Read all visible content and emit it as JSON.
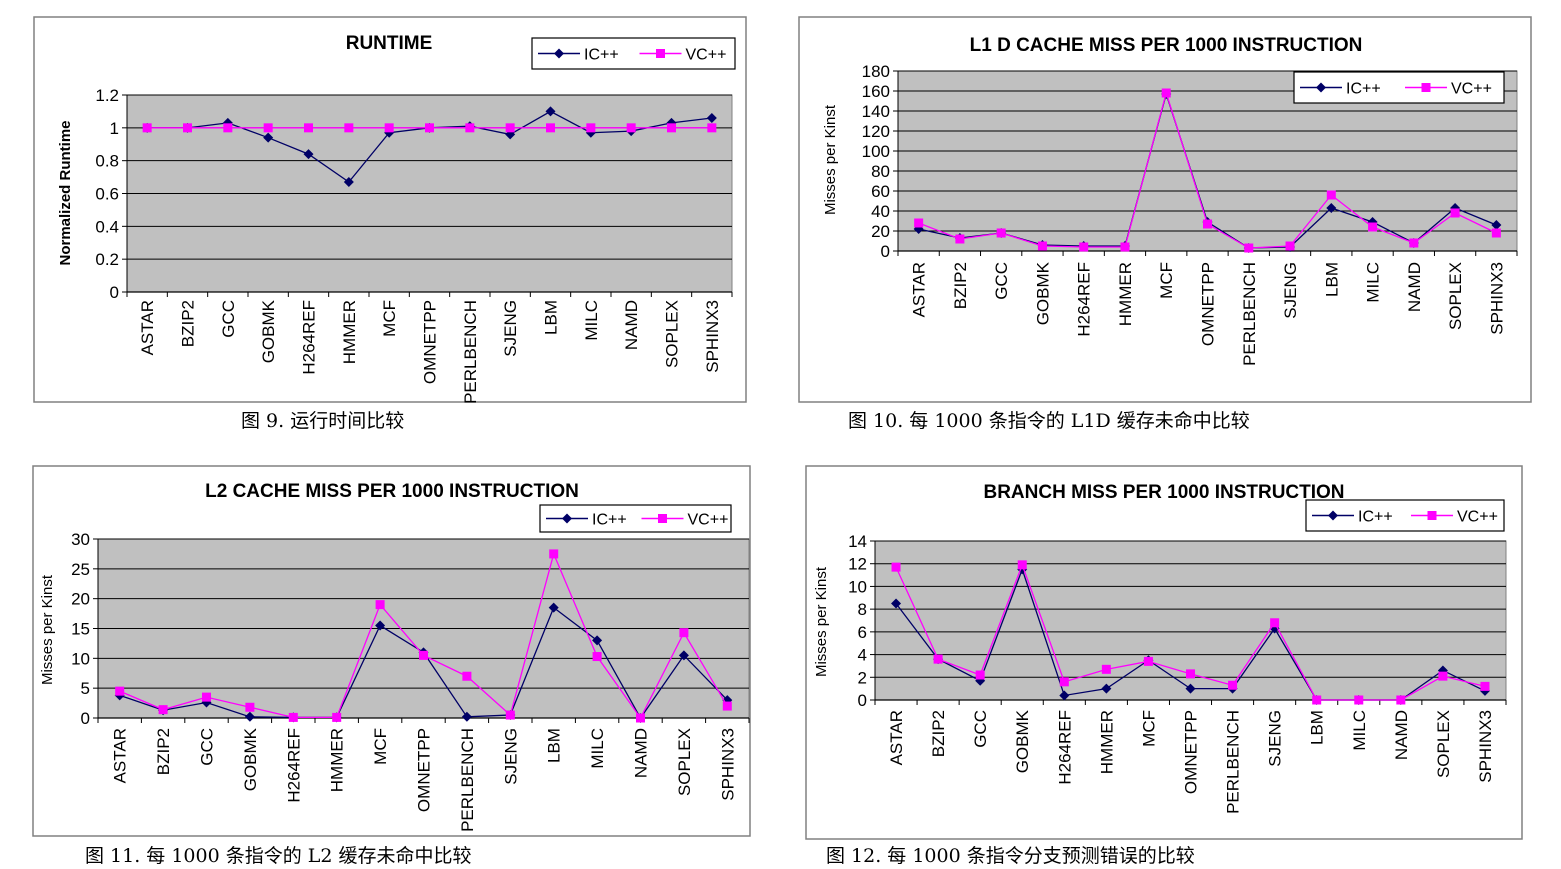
{
  "chart_data": [
    {
      "type": "line",
      "title": "RUNTIME",
      "ylabel": "Normalized Runtime",
      "ylim": [
        0,
        1.2
      ],
      "yticks": [
        "0",
        "0.2",
        "0.4",
        "0.6",
        "0.8",
        "1",
        "1.2"
      ],
      "legend": "top-right",
      "grid": true,
      "categories": [
        "ASTAR",
        "BZIP2",
        "GCC",
        "GOBMK",
        "H264REF",
        "HMMER",
        "MCF",
        "OMNETPP",
        "PERLBENCH",
        "SJENG",
        "LBM",
        "MILC",
        "NAMD",
        "SOPLEX",
        "SPHINX3"
      ],
      "series": [
        {
          "name": "IC++",
          "color": "#000066",
          "marker": "diamond",
          "values": [
            1.0,
            1.0,
            1.03,
            0.94,
            0.84,
            0.67,
            0.97,
            1.0,
            1.01,
            0.96,
            1.1,
            0.97,
            0.98,
            1.03,
            1.06
          ]
        },
        {
          "name": "VC++",
          "color": "#ff00ff",
          "marker": "square",
          "values": [
            1,
            1,
            1,
            1,
            1,
            1,
            1,
            1,
            1,
            1,
            1,
            1,
            1,
            1,
            1
          ]
        }
      ],
      "caption": "图 9. 运行时间比较"
    },
    {
      "type": "line",
      "title": "L1 D CACHE MISS PER 1000 INSTRUCTION",
      "ylabel": "Misses per Kinst",
      "ylim": [
        0,
        180
      ],
      "yticks": [
        "0",
        "20",
        "40",
        "60",
        "80",
        "100",
        "120",
        "140",
        "160",
        "180"
      ],
      "legend": "top-right",
      "grid": true,
      "categories": [
        "ASTAR",
        "BZIP2",
        "GCC",
        "GOBMK",
        "H264REF",
        "HMMER",
        "MCF",
        "OMNETPP",
        "PERLBENCH",
        "SJENG",
        "LBM",
        "MILC",
        "NAMD",
        "SOPLEX",
        "SPHINX3"
      ],
      "series": [
        {
          "name": "IC++",
          "color": "#000066",
          "marker": "diamond",
          "values": [
            22,
            13,
            18,
            6,
            5,
            5,
            157,
            29,
            3,
            4,
            43,
            29,
            8,
            43,
            26
          ]
        },
        {
          "name": "VC++",
          "color": "#ff00ff",
          "marker": "square",
          "values": [
            28,
            12,
            18,
            5,
            4,
            4,
            158,
            27,
            3,
            5,
            56,
            24,
            8,
            38,
            18
          ]
        }
      ],
      "caption": "图 10. 每 1000 条指令的 L1D 缓存未命中比较"
    },
    {
      "type": "line",
      "title": "L2 CACHE MISS PER 1000 INSTRUCTION",
      "ylabel": "Misses per Kinst",
      "ylim": [
        0,
        30
      ],
      "yticks": [
        "0",
        "5",
        "10",
        "15",
        "20",
        "25",
        "30"
      ],
      "legend": "top-right",
      "grid": true,
      "categories": [
        "ASTAR",
        "BZIP2",
        "GCC",
        "GOBMK",
        "H264REF",
        "HMMER",
        "MCF",
        "OMNETPP",
        "PERLBENCH",
        "SJENG",
        "LBM",
        "MILC",
        "NAMD",
        "SOPLEX",
        "SPHINX3"
      ],
      "series": [
        {
          "name": "IC++",
          "color": "#000066",
          "marker": "diamond",
          "values": [
            3.8,
            1.3,
            2.6,
            0.2,
            0.1,
            0.1,
            15.5,
            11,
            0.2,
            0.5,
            18.5,
            13,
            0,
            10.5,
            3
          ]
        },
        {
          "name": "VC++",
          "color": "#ff00ff",
          "marker": "square",
          "values": [
            4.5,
            1.4,
            3.5,
            1.8,
            0.1,
            0.1,
            19,
            10.5,
            7,
            0.5,
            27.5,
            10.3,
            0,
            14.3,
            2
          ]
        }
      ],
      "caption": "图 11. 每 1000 条指令的 L2 缓存未命中比较"
    },
    {
      "type": "line",
      "title": "BRANCH MISS PER 1000 INSTRUCTION",
      "ylabel": "Misses per Kinst",
      "ylim": [
        0,
        14
      ],
      "yticks": [
        "0",
        "2",
        "4",
        "6",
        "8",
        "10",
        "12",
        "14"
      ],
      "legend": "top-right",
      "grid": true,
      "categories": [
        "ASTAR",
        "BZIP2",
        "GCC",
        "GOBMK",
        "H264REF",
        "HMMER",
        "MCF",
        "OMNETPP",
        "PERLBENCH",
        "SJENG",
        "LBM",
        "MILC",
        "NAMD",
        "SOPLEX",
        "SPHINX3"
      ],
      "series": [
        {
          "name": "IC++",
          "color": "#000066",
          "marker": "diamond",
          "values": [
            8.5,
            3.6,
            1.7,
            11.5,
            0.4,
            1,
            3.5,
            1,
            1,
            6.3,
            0,
            0,
            0,
            2.6,
            0.8
          ]
        },
        {
          "name": "VC++",
          "color": "#ff00ff",
          "marker": "square",
          "values": [
            11.7,
            3.6,
            2.2,
            11.9,
            1.6,
            2.7,
            3.4,
            2.3,
            1.3,
            6.8,
            0,
            0,
            0,
            2.1,
            1.2
          ]
        }
      ],
      "caption": "图 12. 每 1000 条指令分支预测错误的比较"
    }
  ]
}
